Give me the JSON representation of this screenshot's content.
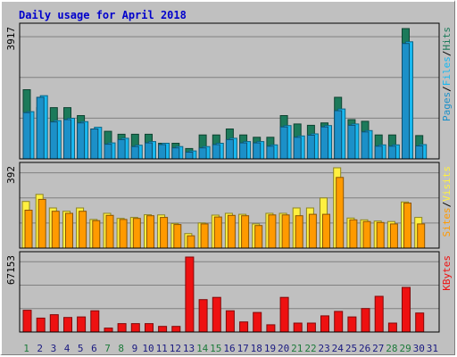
{
  "title": "Daily usage for April 2018",
  "colors": {
    "hits": "#1c7a5a",
    "files": "#18b8f0",
    "pages": "#1c90c8",
    "visits": "#fff040",
    "sites": "#ff9a00",
    "kbytes": "#ee1111",
    "weekend_day": "#1c7a3a",
    "weekday": "#1a1a80",
    "title": "#0000cc",
    "panel_bg": "#c0c0c0"
  },
  "chart_data": [
    {
      "type": "bar",
      "name": "hits-files-pages",
      "ymax_label": "3917",
      "ylim": [
        0,
        3917
      ],
      "legend": [
        "Pages",
        "/",
        "Files",
        "/",
        "Hits"
      ],
      "categories": [
        "1",
        "2",
        "3",
        "4",
        "5",
        "6",
        "7",
        "8",
        "9",
        "10",
        "11",
        "12",
        "13",
        "14",
        "15",
        "16",
        "17",
        "18",
        "19",
        "20",
        "21",
        "22",
        "23",
        "24",
        "25",
        "26",
        "27",
        "28",
        "29",
        "30",
        "31"
      ],
      "series": [
        {
          "name": "Hits",
          "values": [
            2080,
            1540,
            1540,
            1540,
            1300,
            900,
            830,
            740,
            740,
            740,
            470,
            470,
            310,
            720,
            720,
            900,
            720,
            650,
            650,
            1300,
            1050,
            1010,
            1080,
            1850,
            1180,
            1130,
            720,
            720,
            3917,
            700,
            0
          ]
        },
        {
          "name": "Files",
          "values": [
            1420,
            1900,
            1150,
            1220,
            1120,
            950,
            480,
            620,
            410,
            520,
            470,
            370,
            240,
            370,
            470,
            620,
            520,
            520,
            420,
            1000,
            690,
            750,
            1000,
            1500,
            1050,
            850,
            420,
            420,
            3520,
            430,
            0
          ]
        },
        {
          "name": "Pages",
          "values": [
            1390,
            1850,
            1110,
            1180,
            1080,
            900,
            440,
            580,
            370,
            480,
            430,
            330,
            200,
            330,
            430,
            580,
            480,
            480,
            380,
            960,
            650,
            710,
            960,
            1450,
            1010,
            810,
            380,
            380,
            3470,
            390,
            0
          ]
        }
      ],
      "grid": true
    },
    {
      "type": "bar",
      "name": "visits-sites",
      "ymax_label": "392",
      "ylim": [
        0,
        392
      ],
      "legend": [
        "Sites",
        "/",
        "Visits"
      ],
      "categories": [
        "1",
        "2",
        "3",
        "4",
        "5",
        "6",
        "7",
        "8",
        "9",
        "10",
        "11",
        "12",
        "13",
        "14",
        "15",
        "16",
        "17",
        "18",
        "19",
        "20",
        "21",
        "22",
        "23",
        "24",
        "25",
        "26",
        "27",
        "28",
        "29",
        "30",
        "31"
      ],
      "series": [
        {
          "name": "Visits",
          "values": [
            228,
            262,
            196,
            180,
            196,
            140,
            170,
            145,
            150,
            163,
            162,
            120,
            71,
            123,
            161,
            170,
            165,
            118,
            170,
            170,
            196,
            196,
            245,
            392,
            147,
            138,
            132,
            130,
            225,
            150,
            0
          ]
        },
        {
          "name": "Sites",
          "values": [
            185,
            238,
            180,
            170,
            180,
            134,
            160,
            140,
            145,
            158,
            150,
            115,
            60,
            118,
            152,
            160,
            158,
            110,
            162,
            162,
            158,
            165,
            165,
            345,
            138,
            130,
            125,
            118,
            220,
            118,
            0
          ]
        }
      ],
      "grid": true
    },
    {
      "type": "bar",
      "name": "kbytes",
      "ymax_label": "67153",
      "ylim": [
        0,
        67153
      ],
      "legend": [
        "KBytes"
      ],
      "categories": [
        "1",
        "2",
        "3",
        "4",
        "5",
        "6",
        "7",
        "8",
        "9",
        "10",
        "11",
        "12",
        "13",
        "14",
        "15",
        "16",
        "17",
        "18",
        "19",
        "20",
        "21",
        "22",
        "23",
        "24",
        "25",
        "26",
        "27",
        "28",
        "29",
        "30",
        "31"
      ],
      "series": [
        {
          "name": "KBytes",
          "values": [
            19500,
            12500,
            15500,
            13000,
            13500,
            19000,
            3500,
            7500,
            7500,
            7500,
            5000,
            5000,
            67153,
            29000,
            31000,
            19000,
            9000,
            17500,
            6500,
            31000,
            8000,
            8000,
            14500,
            18500,
            13500,
            21000,
            32000,
            8000,
            40000,
            17000,
            0
          ]
        }
      ],
      "grid": true
    }
  ],
  "x_days": [
    "1",
    "2",
    "3",
    "4",
    "5",
    "6",
    "7",
    "8",
    "9",
    "10",
    "11",
    "12",
    "13",
    "14",
    "15",
    "16",
    "17",
    "18",
    "19",
    "20",
    "21",
    "22",
    "23",
    "24",
    "25",
    "26",
    "27",
    "28",
    "29",
    "30",
    "31"
  ],
  "weekend_days": [
    "1",
    "7",
    "8",
    "14",
    "15",
    "21",
    "22",
    "28",
    "29"
  ]
}
